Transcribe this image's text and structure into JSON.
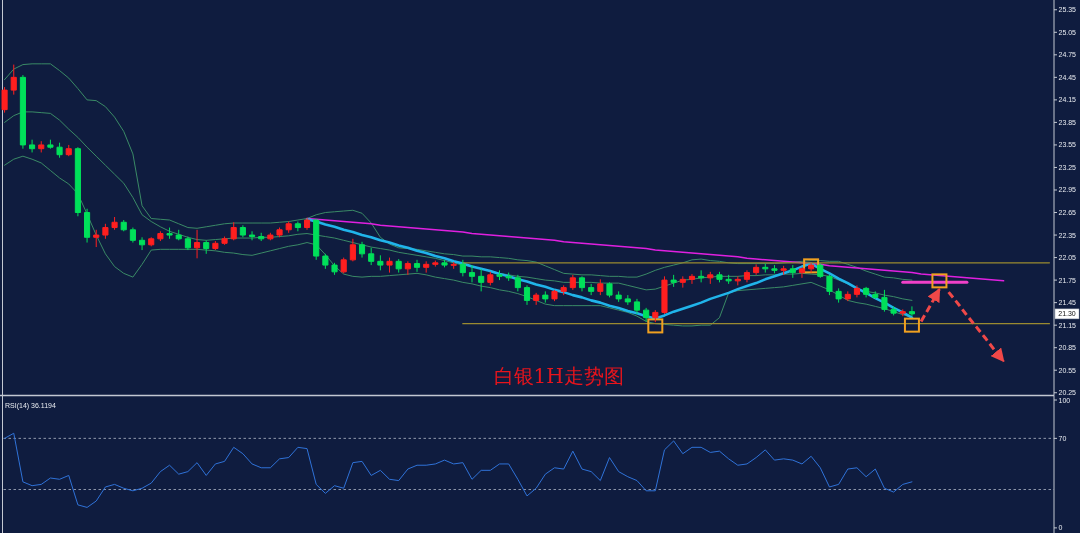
{
  "chart_data": [
    {
      "type": "candlestick",
      "title": "白银1H走势图",
      "categories": [
        null,
        null,
        null,
        null,
        null,
        null,
        null,
        null,
        null,
        null,
        null,
        null,
        null,
        null,
        null,
        null,
        null,
        null,
        null,
        null,
        null,
        null,
        null,
        null,
        null,
        null,
        null,
        null,
        null,
        null,
        null,
        null,
        null,
        null,
        null,
        null,
        null,
        null,
        null,
        null,
        null,
        null,
        null,
        null,
        null,
        null,
        null,
        null,
        null,
        null,
        null,
        null,
        null,
        null,
        null,
        null,
        null,
        null,
        null,
        null,
        null,
        null,
        null,
        null,
        null,
        null,
        null,
        null,
        null,
        null,
        null,
        null,
        null,
        null,
        null,
        null,
        null,
        null,
        null,
        null,
        null,
        null,
        null,
        null,
        null,
        null,
        null,
        null,
        null,
        null,
        null,
        null,
        null,
        null,
        null,
        null,
        null,
        null,
        null,
        null,
        null,
        null,
        null,
        null,
        null,
        null,
        null,
        null,
        null,
        null,
        null,
        null,
        null,
        null,
        null
      ],
      "ohlc": [
        [
          24.02,
          24.32,
          23.98,
          24.28
        ],
        [
          24.28,
          24.62,
          24.22,
          24.45
        ],
        [
          24.45,
          24.48,
          23.5,
          23.55
        ],
        [
          23.55,
          23.62,
          23.45,
          23.5
        ],
        [
          23.5,
          23.6,
          23.45,
          23.55
        ],
        [
          23.55,
          23.62,
          23.5,
          23.52
        ],
        [
          23.52,
          23.58,
          23.38,
          23.42
        ],
        [
          23.42,
          23.55,
          23.4,
          23.5
        ],
        [
          23.5,
          23.52,
          22.6,
          22.65
        ],
        [
          22.65,
          22.7,
          22.25,
          22.32
        ],
        [
          22.32,
          22.42,
          22.19,
          22.35
        ],
        [
          22.35,
          22.5,
          22.3,
          22.45
        ],
        [
          22.45,
          22.59,
          22.42,
          22.52
        ],
        [
          22.52,
          22.55,
          22.4,
          22.42
        ],
        [
          22.42,
          22.45,
          22.25,
          22.28
        ],
        [
          22.28,
          22.32,
          22.15,
          22.22
        ],
        [
          22.22,
          22.32,
          22.2,
          22.3
        ],
        [
          22.3,
          22.4,
          22.27,
          22.37
        ],
        [
          22.37,
          22.45,
          22.3,
          22.35
        ],
        [
          22.35,
          22.42,
          22.28,
          22.3
        ],
        [
          22.3,
          22.33,
          22.15,
          22.18
        ],
        [
          22.18,
          22.42,
          22.04,
          22.25
        ],
        [
          22.25,
          22.28,
          22.1,
          22.17
        ],
        [
          22.17,
          22.27,
          22.15,
          22.24
        ],
        [
          22.24,
          22.33,
          22.22,
          22.3
        ],
        [
          22.3,
          22.52,
          22.28,
          22.45
        ],
        [
          22.45,
          22.48,
          22.32,
          22.35
        ],
        [
          22.35,
          22.4,
          22.28,
          22.33
        ],
        [
          22.33,
          22.38,
          22.27,
          22.3
        ],
        [
          22.3,
          22.38,
          22.28,
          22.35
        ],
        [
          22.35,
          22.45,
          22.32,
          22.42
        ],
        [
          22.42,
          22.53,
          22.38,
          22.5
        ],
        [
          22.5,
          22.53,
          22.4,
          22.45
        ],
        [
          22.45,
          22.58,
          22.42,
          22.55
        ],
        [
          22.55,
          22.56,
          22.02,
          22.07
        ],
        [
          22.07,
          22.1,
          21.9,
          21.95
        ],
        [
          21.95,
          21.98,
          21.82,
          21.86
        ],
        [
          21.86,
          22.05,
          21.84,
          22.02
        ],
        [
          22.02,
          22.3,
          22.0,
          22.22
        ],
        [
          22.22,
          22.26,
          22.05,
          22.1
        ],
        [
          22.1,
          22.18,
          21.95,
          22.0
        ],
        [
          22.0,
          22.08,
          21.88,
          21.95
        ],
        [
          21.95,
          22.05,
          21.85,
          22.0
        ],
        [
          22.0,
          22.03,
          21.85,
          21.9
        ],
        [
          21.9,
          22.0,
          21.82,
          21.97
        ],
        [
          21.97,
          22.02,
          21.86,
          21.92
        ],
        [
          21.92,
          22.0,
          21.85,
          21.96
        ],
        [
          21.96,
          22.01,
          21.93,
          21.98
        ],
        [
          21.98,
          22.02,
          21.92,
          21.95
        ],
        [
          21.95,
          21.99,
          21.9,
          21.96
        ],
        [
          21.96,
          22.02,
          21.8,
          21.85
        ],
        [
          21.85,
          21.95,
          21.72,
          21.8
        ],
        [
          21.8,
          21.9,
          21.6,
          21.72
        ],
        [
          21.72,
          21.86,
          21.68,
          21.82
        ],
        [
          21.82,
          21.88,
          21.75,
          21.8
        ],
        [
          21.8,
          21.85,
          21.74,
          21.78
        ],
        [
          21.78,
          21.82,
          21.6,
          21.65
        ],
        [
          21.65,
          21.68,
          21.42,
          21.48
        ],
        [
          21.48,
          21.58,
          21.42,
          21.55
        ],
        [
          21.55,
          21.6,
          21.45,
          21.5
        ],
        [
          21.5,
          21.62,
          21.47,
          21.6
        ],
        [
          21.6,
          21.68,
          21.55,
          21.65
        ],
        [
          21.65,
          21.82,
          21.62,
          21.78
        ],
        [
          21.78,
          21.8,
          21.6,
          21.65
        ],
        [
          21.65,
          21.7,
          21.55,
          21.6
        ],
        [
          21.6,
          21.76,
          21.55,
          21.7
        ],
        [
          21.7,
          21.72,
          21.52,
          21.55
        ],
        [
          21.55,
          21.6,
          21.46,
          21.5
        ],
        [
          21.5,
          21.55,
          21.42,
          21.46
        ],
        [
          21.46,
          21.5,
          21.3,
          21.35
        ],
        [
          21.35,
          21.38,
          21.2,
          21.25
        ],
        [
          21.25,
          21.35,
          21.19,
          21.32
        ],
        [
          21.32,
          21.8,
          21.3,
          21.75
        ],
        [
          21.75,
          21.82,
          21.66,
          21.72
        ],
        [
          21.72,
          21.8,
          21.65,
          21.76
        ],
        [
          21.76,
          21.83,
          21.7,
          21.8
        ],
        [
          21.8,
          21.88,
          21.72,
          21.78
        ],
        [
          21.78,
          21.86,
          21.7,
          21.82
        ],
        [
          21.82,
          21.86,
          21.72,
          21.76
        ],
        [
          21.76,
          21.82,
          21.7,
          21.74
        ],
        [
          21.74,
          21.8,
          21.68,
          21.76
        ],
        [
          21.76,
          21.88,
          21.72,
          21.85
        ],
        [
          21.85,
          21.96,
          21.82,
          21.92
        ],
        [
          21.92,
          21.97,
          21.85,
          21.9
        ],
        [
          21.9,
          21.95,
          21.84,
          21.88
        ],
        [
          21.88,
          21.94,
          21.82,
          21.9
        ],
        [
          21.9,
          21.95,
          21.78,
          21.85
        ],
        [
          21.85,
          21.92,
          21.78,
          21.9
        ],
        [
          21.9,
          21.98,
          21.85,
          21.95
        ],
        [
          21.95,
          21.97,
          21.78,
          21.8
        ],
        [
          21.8,
          21.82,
          21.55,
          21.6
        ],
        [
          21.6,
          21.64,
          21.45,
          21.5
        ],
        [
          21.5,
          21.6,
          21.47,
          21.56
        ],
        [
          21.56,
          21.68,
          21.52,
          21.64
        ],
        [
          21.64,
          21.66,
          21.52,
          21.56
        ],
        [
          21.56,
          21.6,
          21.5,
          21.52
        ],
        [
          21.52,
          21.62,
          21.33,
          21.36
        ],
        [
          21.36,
          21.4,
          21.28,
          21.31
        ],
        [
          21.31,
          21.36,
          21.27,
          21.33
        ],
        [
          21.33,
          21.4,
          21.27,
          21.3
        ],
        null,
        null,
        null,
        null,
        null,
        null,
        null,
        null,
        null,
        null,
        null,
        null,
        null,
        null,
        null
      ],
      "series": [
        {
          "type": "line",
          "color": "#3a8a66",
          "values": [
            24.42,
            24.56,
            24.62,
            24.63,
            24.63,
            24.63,
            24.54,
            24.44,
            24.3,
            24.15,
            24.14,
            24.06,
            23.92,
            23.73,
            23.43,
            22.74,
            22.57,
            22.56,
            22.55,
            22.5,
            22.45,
            22.44,
            22.46,
            22.48,
            22.5,
            22.51,
            22.51,
            22.51,
            22.51,
            22.51,
            22.52,
            22.53,
            22.55,
            22.57,
            22.62,
            22.65,
            22.66,
            22.67,
            22.68,
            22.64,
            22.51,
            22.32,
            22.23,
            22.18,
            22.17,
            22.16,
            22.14,
            22.12,
            22.1,
            22.09,
            22.07,
            22.07,
            22.06,
            22.06,
            22.05,
            22.04,
            22.02,
            22.01,
            21.99,
            21.94,
            21.89,
            21.84,
            21.83,
            21.82,
            21.82,
            21.81,
            21.8,
            21.8,
            21.79,
            21.79,
            21.83,
            21.88,
            21.92,
            21.95,
            21.98,
            22.02,
            22.03,
            22.01,
            22.0,
            21.98,
            21.97,
            21.97,
            21.97,
            21.97,
            21.97,
            21.98,
            21.99,
            22.0,
            22.01,
            22.01,
            22.0,
            22.0,
            21.96,
            21.92,
            21.87,
            21.83,
            21.79,
            21.78,
            21.76,
            21.75,
            null,
            null,
            null,
            null,
            null,
            null,
            null,
            null,
            null,
            null,
            null,
            null,
            null,
            null,
            null
          ]
        },
        {
          "type": "line",
          "color": "#3a8a66",
          "values": [
            23.85,
            23.94,
            23.99,
            23.99,
            23.98,
            23.97,
            23.88,
            23.76,
            23.65,
            23.52,
            23.4,
            23.28,
            23.16,
            23.04,
            22.85,
            22.62,
            22.53,
            22.46,
            22.4,
            22.36,
            22.32,
            22.29,
            22.28,
            22.29,
            22.3,
            22.31,
            22.31,
            22.31,
            22.32,
            22.32,
            22.33,
            22.34,
            22.36,
            22.37,
            22.35,
            22.33,
            22.31,
            22.28,
            22.25,
            22.22,
            22.19,
            22.17,
            22.15,
            22.12,
            22.1,
            22.08,
            22.06,
            22.04,
            22.01,
            21.98,
            21.95,
            21.93,
            21.9,
            21.87,
            21.84,
            21.82,
            21.8,
            21.79,
            21.77,
            21.75,
            21.74,
            21.72,
            21.72,
            21.72,
            21.72,
            21.71,
            21.71,
            21.71,
            21.68,
            21.65,
            21.62,
            21.63,
            21.67,
            21.71,
            21.75,
            21.76,
            21.78,
            21.79,
            21.8,
            21.8,
            21.8,
            21.81,
            21.81,
            21.82,
            21.82,
            21.83,
            21.83,
            21.84,
            21.83,
            21.82,
            21.8,
            21.75,
            21.7,
            21.64,
            21.6,
            21.58,
            21.55,
            21.53,
            21.5,
            21.48,
            null,
            null,
            null,
            null,
            null,
            null,
            null,
            null,
            null,
            null,
            null,
            null,
            null,
            null,
            null
          ]
        },
        {
          "type": "line",
          "color": "#3a8a66",
          "values": [
            23.28,
            23.36,
            23.4,
            23.36,
            23.31,
            23.21,
            23.11,
            23.03,
            22.9,
            22.63,
            22.35,
            22.1,
            21.93,
            21.84,
            21.79,
            21.96,
            22.15,
            22.16,
            22.16,
            22.16,
            22.16,
            22.16,
            22.15,
            22.14,
            22.12,
            22.11,
            22.09,
            22.08,
            22.11,
            22.14,
            22.17,
            22.2,
            22.22,
            22.25,
            22.22,
            22.09,
            21.94,
            21.83,
            21.8,
            21.79,
            21.8,
            21.8,
            21.81,
            21.82,
            21.83,
            21.84,
            21.82,
            21.79,
            21.77,
            21.75,
            21.72,
            21.7,
            21.67,
            21.65,
            21.62,
            21.6,
            21.57,
            21.53,
            21.48,
            21.43,
            21.41,
            21.41,
            21.41,
            21.41,
            21.41,
            21.41,
            21.38,
            21.35,
            21.32,
            21.27,
            21.2,
            21.17,
            21.16,
            21.15,
            21.14,
            21.14,
            21.15,
            21.15,
            21.25,
            21.58,
            21.61,
            21.62,
            21.63,
            21.64,
            21.65,
            21.66,
            21.68,
            21.7,
            21.72,
            21.67,
            21.62,
            21.55,
            21.48,
            21.45,
            21.43,
            21.4,
            21.37,
            21.33,
            21.29,
            21.25,
            null,
            null,
            null,
            null,
            null,
            null,
            null,
            null,
            null,
            null,
            null,
            null,
            null,
            null,
            null
          ]
        },
        {
          "type": "line",
          "color": "#e020e0",
          "values": [
            null,
            null,
            null,
            null,
            null,
            null,
            null,
            null,
            null,
            null,
            null,
            null,
            null,
            null,
            null,
            null,
            null,
            null,
            null,
            null,
            null,
            null,
            null,
            null,
            null,
            null,
            null,
            null,
            null,
            null,
            null,
            null,
            null,
            22.57,
            22.56,
            22.55,
            22.54,
            22.53,
            22.52,
            22.51,
            22.5,
            22.48,
            22.47,
            22.46,
            22.45,
            22.44,
            22.43,
            22.42,
            22.41,
            22.4,
            22.39,
            22.37,
            22.36,
            22.35,
            22.34,
            22.33,
            22.32,
            22.31,
            22.3,
            22.29,
            22.28,
            22.26,
            22.25,
            22.24,
            22.23,
            22.22,
            22.21,
            22.2,
            22.19,
            22.18,
            22.17,
            22.15,
            22.14,
            22.13,
            22.12,
            22.11,
            22.1,
            22.09,
            22.08,
            22.07,
            22.06,
            22.04,
            22.03,
            22.02,
            22.01,
            22.0,
            21.99,
            21.98,
            21.97,
            21.96,
            21.94,
            21.93,
            21.92,
            21.91,
            21.9,
            21.89,
            21.88,
            21.87,
            21.86,
            21.85,
            21.83,
            21.82,
            21.81,
            21.8,
            21.79,
            21.78,
            21.77,
            21.76,
            21.75,
            21.74,
            null,
            null,
            null,
            null,
            null
          ]
        },
        {
          "type": "line",
          "color": "#20b4ea",
          "values": [
            null,
            null,
            null,
            null,
            null,
            null,
            null,
            null,
            null,
            null,
            null,
            null,
            null,
            null,
            null,
            null,
            null,
            null,
            null,
            null,
            null,
            null,
            null,
            null,
            null,
            null,
            null,
            null,
            null,
            null,
            null,
            null,
            null,
            22.56,
            22.53,
            22.49,
            22.46,
            22.42,
            22.39,
            22.35,
            22.32,
            22.28,
            22.25,
            22.21,
            22.18,
            22.14,
            22.11,
            22.07,
            22.04,
            22.0,
            21.97,
            21.93,
            21.9,
            21.87,
            21.83,
            21.8,
            21.76,
            21.73,
            21.69,
            21.66,
            21.62,
            21.59,
            21.55,
            21.52,
            21.48,
            21.45,
            21.41,
            21.38,
            21.34,
            21.31,
            21.27,
            21.24,
            21.28,
            21.33,
            21.37,
            21.41,
            21.45,
            21.5,
            21.54,
            21.58,
            21.63,
            21.67,
            21.71,
            21.76,
            21.8,
            21.84,
            21.88,
            21.93,
            21.97,
            21.9,
            21.84,
            21.77,
            21.71,
            21.64,
            21.58,
            21.51,
            21.45,
            21.38,
            21.32,
            21.25,
            null,
            null,
            null,
            null,
            null,
            null,
            null,
            null,
            null,
            null,
            null,
            null,
            null,
            null,
            null
          ]
        },
        {
          "type": "line",
          "color": "#9a8a30",
          "values": [
            null,
            null,
            null,
            null,
            null,
            null,
            null,
            null,
            null,
            null,
            null,
            null,
            null,
            null,
            null,
            null,
            null,
            null,
            null,
            null,
            null,
            null,
            null,
            null,
            null,
            null,
            null,
            null,
            null,
            null,
            null,
            null,
            null,
            null,
            null,
            null,
            null,
            null,
            null,
            null,
            null,
            null,
            null,
            null,
            null,
            null,
            null,
            null,
            null,
            null,
            21.98,
            21.98,
            21.98,
            21.98,
            21.98,
            21.98,
            21.98,
            21.98,
            21.98,
            21.98,
            21.98,
            21.98,
            21.98,
            21.98,
            21.98,
            21.98,
            21.98,
            21.98,
            21.98,
            21.98,
            21.98,
            21.98,
            21.98,
            21.98,
            21.98,
            21.98,
            21.98,
            21.98,
            21.98,
            21.98,
            21.98,
            21.98,
            21.98,
            21.98,
            21.98,
            21.98,
            21.98,
            21.98,
            21.98,
            21.98,
            21.98,
            21.98,
            21.98,
            21.98,
            21.98,
            21.98,
            21.98,
            21.98,
            21.98,
            21.98,
            21.98,
            21.98,
            21.98,
            21.98,
            21.98,
            21.98,
            21.98,
            21.98,
            21.98,
            21.98,
            21.98,
            21.98,
            21.98,
            21.98,
            21.98
          ]
        },
        {
          "type": "line",
          "color": "#9a8a30",
          "values": [
            null,
            null,
            null,
            null,
            null,
            null,
            null,
            null,
            null,
            null,
            null,
            null,
            null,
            null,
            null,
            null,
            null,
            null,
            null,
            null,
            null,
            null,
            null,
            null,
            null,
            null,
            null,
            null,
            null,
            null,
            null,
            null,
            null,
            null,
            null,
            null,
            null,
            null,
            null,
            null,
            null,
            null,
            null,
            null,
            null,
            null,
            null,
            null,
            null,
            null,
            21.17,
            21.17,
            21.17,
            21.17,
            21.17,
            21.17,
            21.17,
            21.17,
            21.17,
            21.17,
            21.17,
            21.17,
            21.17,
            21.17,
            21.17,
            21.17,
            21.17,
            21.17,
            21.17,
            21.17,
            21.17,
            21.17,
            21.17,
            21.17,
            21.17,
            21.17,
            21.17,
            21.17,
            21.17,
            21.17,
            21.17,
            21.17,
            21.17,
            21.17,
            21.17,
            21.17,
            21.17,
            21.17,
            21.17,
            21.17,
            21.17,
            21.17,
            21.17,
            21.17,
            21.17,
            21.17,
            21.17,
            21.17,
            21.17,
            21.17,
            21.17,
            21.17,
            21.17,
            21.17,
            21.17,
            21.17,
            21.17,
            21.17,
            21.17,
            21.17,
            21.17,
            21.17,
            21.17,
            21.17,
            21.17
          ]
        },
        {
          "type": "line",
          "color": "#f040c8",
          "values": [
            null,
            null,
            null,
            null,
            null,
            null,
            null,
            null,
            null,
            null,
            null,
            null,
            null,
            null,
            null,
            null,
            null,
            null,
            null,
            null,
            null,
            null,
            null,
            null,
            null,
            null,
            null,
            null,
            null,
            null,
            null,
            null,
            null,
            null,
            null,
            null,
            null,
            null,
            null,
            null,
            null,
            null,
            null,
            null,
            null,
            null,
            null,
            null,
            null,
            null,
            null,
            null,
            null,
            null,
            null,
            null,
            null,
            null,
            null,
            null,
            null,
            null,
            null,
            null,
            null,
            null,
            null,
            null,
            null,
            null,
            null,
            null,
            null,
            null,
            null,
            null,
            null,
            null,
            null,
            null,
            null,
            null,
            null,
            null,
            null,
            null,
            null,
            null,
            null,
            null,
            null,
            null,
            null,
            null,
            null,
            null,
            null,
            null,
            21.72,
            21.72,
            21.72,
            21.72,
            21.72,
            21.72,
            21.72,
            21.72,
            null,
            null,
            null,
            null,
            null,
            null,
            null,
            null,
            null
          ]
        },
        {
          "type": "scatter",
          "color": "#f0a020",
          "marker": "square",
          "values": [
            null,
            null,
            null,
            null,
            null,
            null,
            null,
            null,
            null,
            null,
            null,
            null,
            null,
            null,
            null,
            null,
            null,
            null,
            null,
            null,
            null,
            null,
            null,
            null,
            null,
            null,
            null,
            null,
            null,
            null,
            null,
            null,
            null,
            null,
            null,
            null,
            null,
            null,
            null,
            null,
            null,
            null,
            null,
            null,
            null,
            null,
            null,
            null,
            null,
            null,
            null,
            null,
            null,
            null,
            null,
            null,
            null,
            null,
            null,
            null,
            null,
            null,
            null,
            null,
            null,
            null,
            null,
            null,
            null,
            null,
            null,
            21.14,
            null,
            null,
            null,
            null,
            null,
            null,
            null,
            null,
            null,
            null,
            null,
            null,
            null,
            null,
            null,
            null,
            21.94,
            null,
            null,
            null,
            null,
            null,
            null,
            null,
            null,
            null,
            null,
            21.15,
            null,
            null,
            21.74,
            null,
            null,
            null,
            null,
            null,
            null,
            null,
            null,
            null,
            null,
            null,
            null
          ]
        },
        {
          "type": "line",
          "color": "#f04848",
          "line_style": "dashed",
          "values": [
            null,
            null,
            null,
            null,
            null,
            null,
            null,
            null,
            null,
            null,
            null,
            null,
            null,
            null,
            null,
            null,
            null,
            null,
            null,
            null,
            null,
            null,
            null,
            null,
            null,
            null,
            null,
            null,
            null,
            null,
            null,
            null,
            null,
            null,
            null,
            null,
            null,
            null,
            null,
            null,
            null,
            null,
            null,
            null,
            null,
            null,
            null,
            null,
            null,
            null,
            null,
            null,
            null,
            null,
            null,
            null,
            null,
            null,
            null,
            null,
            null,
            null,
            null,
            null,
            null,
            null,
            null,
            null,
            null,
            null,
            null,
            null,
            null,
            null,
            null,
            null,
            null,
            null,
            null,
            null,
            null,
            null,
            null,
            null,
            null,
            null,
            null,
            null,
            null,
            null,
            null,
            null,
            null,
            null,
            null,
            null,
            null,
            null,
            null,
            null,
            21.2,
            21.41,
            21.63,
            null,
            null,
            null,
            null,
            null,
            null,
            null,
            null,
            null,
            null,
            null,
            null
          ]
        },
        {
          "type": "line",
          "color": "#f04848",
          "line_style": "dashed",
          "values": [
            null,
            null,
            null,
            null,
            null,
            null,
            null,
            null,
            null,
            null,
            null,
            null,
            null,
            null,
            null,
            null,
            null,
            null,
            null,
            null,
            null,
            null,
            null,
            null,
            null,
            null,
            null,
            null,
            null,
            null,
            null,
            null,
            null,
            null,
            null,
            null,
            null,
            null,
            null,
            null,
            null,
            null,
            null,
            null,
            null,
            null,
            null,
            null,
            null,
            null,
            null,
            null,
            null,
            null,
            null,
            null,
            null,
            null,
            null,
            null,
            null,
            null,
            null,
            null,
            null,
            null,
            null,
            null,
            null,
            null,
            null,
            null,
            null,
            null,
            null,
            null,
            null,
            null,
            null,
            null,
            null,
            null,
            null,
            null,
            null,
            null,
            null,
            null,
            null,
            null,
            null,
            null,
            null,
            null,
            null,
            null,
            null,
            null,
            null,
            null,
            null,
            null,
            null,
            21.59,
            21.44,
            21.28,
            21.13,
            20.98,
            20.82,
            20.67,
            null,
            null,
            null,
            null,
            null
          ]
        }
      ],
      "ylim": [
        20.22,
        25.48
      ],
      "yticks": [
        25.35,
        25.05,
        24.75,
        24.45,
        24.15,
        23.85,
        23.55,
        23.25,
        22.95,
        22.65,
        22.35,
        22.05,
        21.75,
        21.45,
        21.15,
        20.85,
        20.55,
        20.25
      ],
      "annotations": [
        {
          "text": "21.30",
          "y": 21.3
        }
      ]
    },
    {
      "type": "line",
      "title": "RSI(14) 36.1194",
      "categories": [
        null,
        null,
        null,
        null,
        null,
        null,
        null,
        null,
        null,
        null,
        null,
        null,
        null,
        null,
        null,
        null,
        null,
        null,
        null,
        null,
        null,
        null,
        null,
        null,
        null,
        null,
        null,
        null,
        null,
        null,
        null,
        null,
        null,
        null,
        null,
        null,
        null,
        null,
        null,
        null,
        null,
        null,
        null,
        null,
        null,
        null,
        null,
        null,
        null,
        null,
        null,
        null,
        null,
        null,
        null,
        null,
        null,
        null,
        null,
        null,
        null,
        null,
        null,
        null,
        null,
        null,
        null,
        null,
        null,
        null,
        null,
        null,
        null,
        null,
        null,
        null,
        null,
        null,
        null,
        null,
        null,
        null,
        null,
        null,
        null,
        null,
        null,
        null,
        null,
        null,
        null,
        null,
        null,
        null,
        null,
        null,
        null,
        null,
        null,
        null,
        null,
        null,
        null,
        null,
        null,
        null,
        null,
        null,
        null,
        null,
        null,
        null,
        null,
        null,
        null
      ],
      "series": [
        {
          "color": "#2f72d8",
          "values": [
            70,
            74,
            36,
            33,
            34,
            39,
            38,
            41,
            18,
            16,
            21,
            32,
            34,
            31,
            29,
            31,
            35,
            44,
            49,
            42,
            44,
            51,
            41,
            50,
            52,
            63,
            58,
            50,
            47,
            47,
            54,
            55,
            63,
            62,
            34,
            27,
            33,
            31,
            51,
            52,
            41,
            45,
            38,
            37,
            46,
            49,
            49,
            50,
            53,
            50,
            51,
            38,
            45,
            45,
            50,
            50,
            38,
            25,
            31,
            42,
            47,
            46,
            60,
            46,
            44,
            37,
            55,
            44,
            40,
            37,
            29,
            29,
            61,
            68,
            58,
            63,
            63,
            59,
            60,
            54,
            49,
            50,
            55,
            61,
            53,
            54,
            53,
            50,
            56,
            47,
            32,
            34,
            46,
            47,
            40,
            46,
            31,
            28,
            34,
            36,
            null,
            null,
            null,
            null,
            null,
            null,
            null,
            null,
            null,
            null,
            null,
            null,
            null,
            null,
            null
          ]
        }
      ],
      "ylim": [
        -4,
        100
      ],
      "yticks": [
        100,
        70,
        0
      ],
      "ref_lines": [
        {
          "axis": "y",
          "value": 70,
          "color": "#8f98ab",
          "line_style": "dashed"
        },
        {
          "axis": "y",
          "value": 30,
          "color": "#8f98ab",
          "line_style": "dashed"
        }
      ]
    }
  ]
}
